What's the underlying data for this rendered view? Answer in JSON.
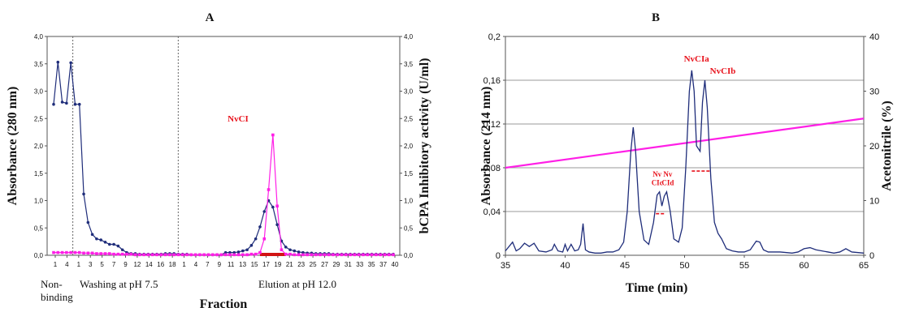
{
  "chart_data": [
    {
      "panel": "A",
      "type": "line",
      "panel_label": "A",
      "xlabel": "Fraction",
      "ylabel": "Absorbance (280 nm)",
      "y2label": "bCPA Inhibitory activity (U/ml)",
      "ylim": [
        0,
        4
      ],
      "y2lim": [
        0,
        4
      ],
      "yticks": [
        "0,0",
        "0,5",
        "1,0",
        "1,5",
        "2,0",
        "2,5",
        "3,0",
        "3,5",
        "4,0"
      ],
      "xtick_labels": [
        "1",
        "4",
        "1",
        "3",
        "5",
        "7",
        "9",
        "12",
        "14",
        "16",
        "18",
        "1",
        "4",
        "7",
        "9",
        "11",
        "13",
        "15",
        "17",
        "19",
        "21",
        "23",
        "25",
        "27",
        "29",
        "31",
        "33",
        "35",
        "37",
        "40"
      ],
      "section_dividers_after_index": [
        1,
        10
      ],
      "section_notes": [
        "Non- binding",
        "Washing at pH 7.5",
        "Elution at pH 12.0"
      ],
      "peak_label": "NvCI",
      "grid": false,
      "colors": {
        "absorbance": "#1f2d7a",
        "activity": "#ff1fe6",
        "bar": "#d11414"
      },
      "series": [
        {
          "key": "absorbance",
          "values": [
            2.76,
            3.53,
            2.8,
            2.78,
            3.52,
            2.76,
            2.76,
            1.12,
            0.6,
            0.38,
            0.3,
            0.28,
            0.24,
            0.2,
            0.2,
            0.17,
            0.1,
            0.05,
            0.03,
            0.03,
            0.02,
            0.02,
            0.02,
            0.02,
            0.02,
            0.02,
            0.03,
            0.03,
            0.03,
            0.02,
            0.02,
            0.02,
            0.01,
            0.01,
            0.01,
            0.01,
            0.01,
            0.01,
            0.01,
            0.01,
            0.05,
            0.05,
            0.05,
            0.06,
            0.08,
            0.1,
            0.18,
            0.3,
            0.52,
            0.8,
            1.0,
            0.88,
            0.56,
            0.26,
            0.15,
            0.1,
            0.08,
            0.06,
            0.05,
            0.04,
            0.04,
            0.03,
            0.03,
            0.03,
            0.03,
            0.02,
            0.02,
            0.02,
            0.02,
            0.02,
            0.02,
            0.02,
            0.02,
            0.02,
            0.02,
            0.02,
            0.02,
            0.02,
            0.02,
            0.02
          ]
        },
        {
          "key": "activity",
          "values": [
            0.05,
            0.05,
            0.05,
            0.05,
            0.05,
            0.05,
            0.05,
            0.04,
            0.04,
            0.04,
            0.03,
            0.03,
            0.03,
            0.03,
            0.02,
            0.02,
            0.02,
            0.02,
            0.02,
            0.01,
            0.01,
            0.01,
            0.01,
            0.01,
            0.01,
            0.01,
            0.01,
            0.01,
            0.01,
            0.01,
            0.01,
            0.01,
            0.01,
            0.01,
            0.01,
            0.01,
            0.01,
            0.01,
            0.01,
            0.01,
            0.01,
            0.01,
            0.01,
            0.01,
            0.01,
            0.01,
            0.02,
            0.02,
            0.05,
            0.3,
            1.2,
            2.2,
            0.9,
            0.1,
            0.02,
            0.02,
            0.01,
            0.01,
            0.01,
            0.01,
            0.01,
            0.01,
            0.01,
            0.01,
            0.01,
            0.01,
            0.01,
            0.01,
            0.01,
            0.01,
            0.01,
            0.01,
            0.01,
            0.01,
            0.01,
            0.01,
            0.01,
            0.01,
            0.01,
            0.01
          ]
        }
      ]
    },
    {
      "panel": "B",
      "type": "line",
      "panel_label": "B",
      "xlabel": "Time (min)",
      "ylabel": "Absorbance (214 nm)",
      "y2label": "Acetonitrile (%)",
      "xlim": [
        35,
        65
      ],
      "ylim": [
        0,
        0.2
      ],
      "y2lim": [
        0,
        40
      ],
      "xticks": [
        35,
        40,
        45,
        50,
        55,
        60,
        65
      ],
      "yticks": [
        "0",
        "0,04",
        "0,08",
        "0,12",
        "0,16",
        "0,2"
      ],
      "y2ticks": [
        "0",
        "10",
        "20",
        "30",
        "40"
      ],
      "grid": true,
      "colors": {
        "absorbance": "#1f2d7a",
        "acetonitrile": "#ff1fe6",
        "dash": "#e8121c"
      },
      "peak_labels": [
        {
          "text": "NvCIa",
          "x": 51.0,
          "y": 0.177
        },
        {
          "text": "NvCIb",
          "x": 53.2,
          "y": 0.166
        },
        {
          "text": "Nv",
          "x": 47.7,
          "y": 0.072
        },
        {
          "text": "CIc",
          "x": 47.7,
          "y": 0.064
        },
        {
          "text": "Nv",
          "x": 48.6,
          "y": 0.072
        },
        {
          "text": "CId",
          "x": 48.6,
          "y": 0.064
        }
      ],
      "series": [
        {
          "key": "absorbance",
          "x": [
            35.0,
            35.6,
            35.9,
            36.2,
            36.6,
            37.0,
            37.4,
            37.8,
            38.4,
            38.9,
            39.1,
            39.4,
            39.8,
            40.0,
            40.2,
            40.5,
            40.8,
            41.1,
            41.3,
            41.5,
            41.7,
            42.0,
            42.5,
            43.0,
            43.5,
            44.0,
            44.5,
            44.9,
            45.2,
            45.5,
            45.7,
            45.9,
            46.2,
            46.6,
            47.0,
            47.4,
            47.7,
            47.9,
            48.1,
            48.3,
            48.5,
            48.8,
            49.1,
            49.5,
            49.8,
            50.1,
            50.4,
            50.6,
            50.8,
            51.0,
            51.3,
            51.5,
            51.7,
            51.9,
            52.2,
            52.5,
            52.8,
            53.1,
            53.5,
            54.0,
            54.5,
            55.0,
            55.5,
            56.0,
            56.3,
            56.6,
            57.0,
            58.0,
            59.0,
            59.5,
            60.0,
            60.5,
            61.0,
            62.0,
            62.5,
            63.0,
            63.5,
            64.0,
            65.0
          ],
          "y": [
            0.004,
            0.012,
            0.004,
            0.006,
            0.011,
            0.008,
            0.011,
            0.004,
            0.003,
            0.005,
            0.01,
            0.004,
            0.003,
            0.01,
            0.004,
            0.01,
            0.004,
            0.005,
            0.01,
            0.029,
            0.005,
            0.003,
            0.002,
            0.002,
            0.003,
            0.003,
            0.005,
            0.012,
            0.04,
            0.095,
            0.117,
            0.095,
            0.04,
            0.014,
            0.01,
            0.03,
            0.055,
            0.058,
            0.045,
            0.054,
            0.058,
            0.04,
            0.015,
            0.012,
            0.025,
            0.08,
            0.15,
            0.169,
            0.15,
            0.1,
            0.095,
            0.14,
            0.16,
            0.135,
            0.07,
            0.03,
            0.02,
            0.015,
            0.006,
            0.004,
            0.003,
            0.003,
            0.005,
            0.013,
            0.012,
            0.005,
            0.003,
            0.003,
            0.002,
            0.003,
            0.006,
            0.007,
            0.005,
            0.003,
            0.002,
            0.003,
            0.006,
            0.003,
            0.002
          ]
        },
        {
          "key": "acetonitrile",
          "x": [
            35,
            65
          ],
          "y2": [
            16,
            25
          ]
        }
      ],
      "dashes": [
        {
          "x": [
            47.6,
            48.3
          ],
          "y": 0.038
        },
        {
          "x": [
            50.6,
            52.2
          ],
          "y": 0.077
        }
      ]
    }
  ]
}
